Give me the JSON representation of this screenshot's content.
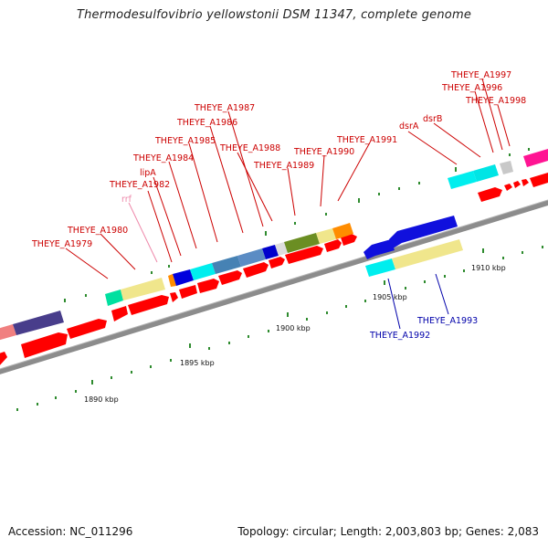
{
  "title": "Thermodesulfovibrio yellowstonii DSM 11347, complete genome",
  "footer": {
    "accession": "Accession: NC_011296",
    "summary": "Topology: circular; Length: 2,003,803 bp; Genes: 2,083"
  },
  "colors": {
    "axis": "#888888",
    "arrow": "#ff0000",
    "plus_label": "#cc0000",
    "minus_label": "#0000aa",
    "rna_label": "#ee88aa",
    "tick": "#2e8b2e"
  },
  "scale_labels": [
    "1890 kbp",
    "1895 kbp",
    "1900 kbp",
    "1905 kbp",
    "1910 kbp"
  ],
  "plus_genes": [
    "THEYE_A1979",
    "THEYE_A1980",
    "rrf",
    "THEYE_A1982",
    "lipA",
    "THEYE_A1984",
    "THEYE_A1985",
    "THEYE_A1986",
    "THEYE_A1987",
    "THEYE_A1988",
    "THEYE_A1989",
    "THEYE_A1990",
    "THEYE_A1991",
    "dsrA",
    "dsrB",
    "THEYE_A1996",
    "THEYE_A1997",
    "THEYE_A1998"
  ],
  "minus_genes": [
    "THEYE_A1992",
    "THEYE_A1993"
  ]
}
